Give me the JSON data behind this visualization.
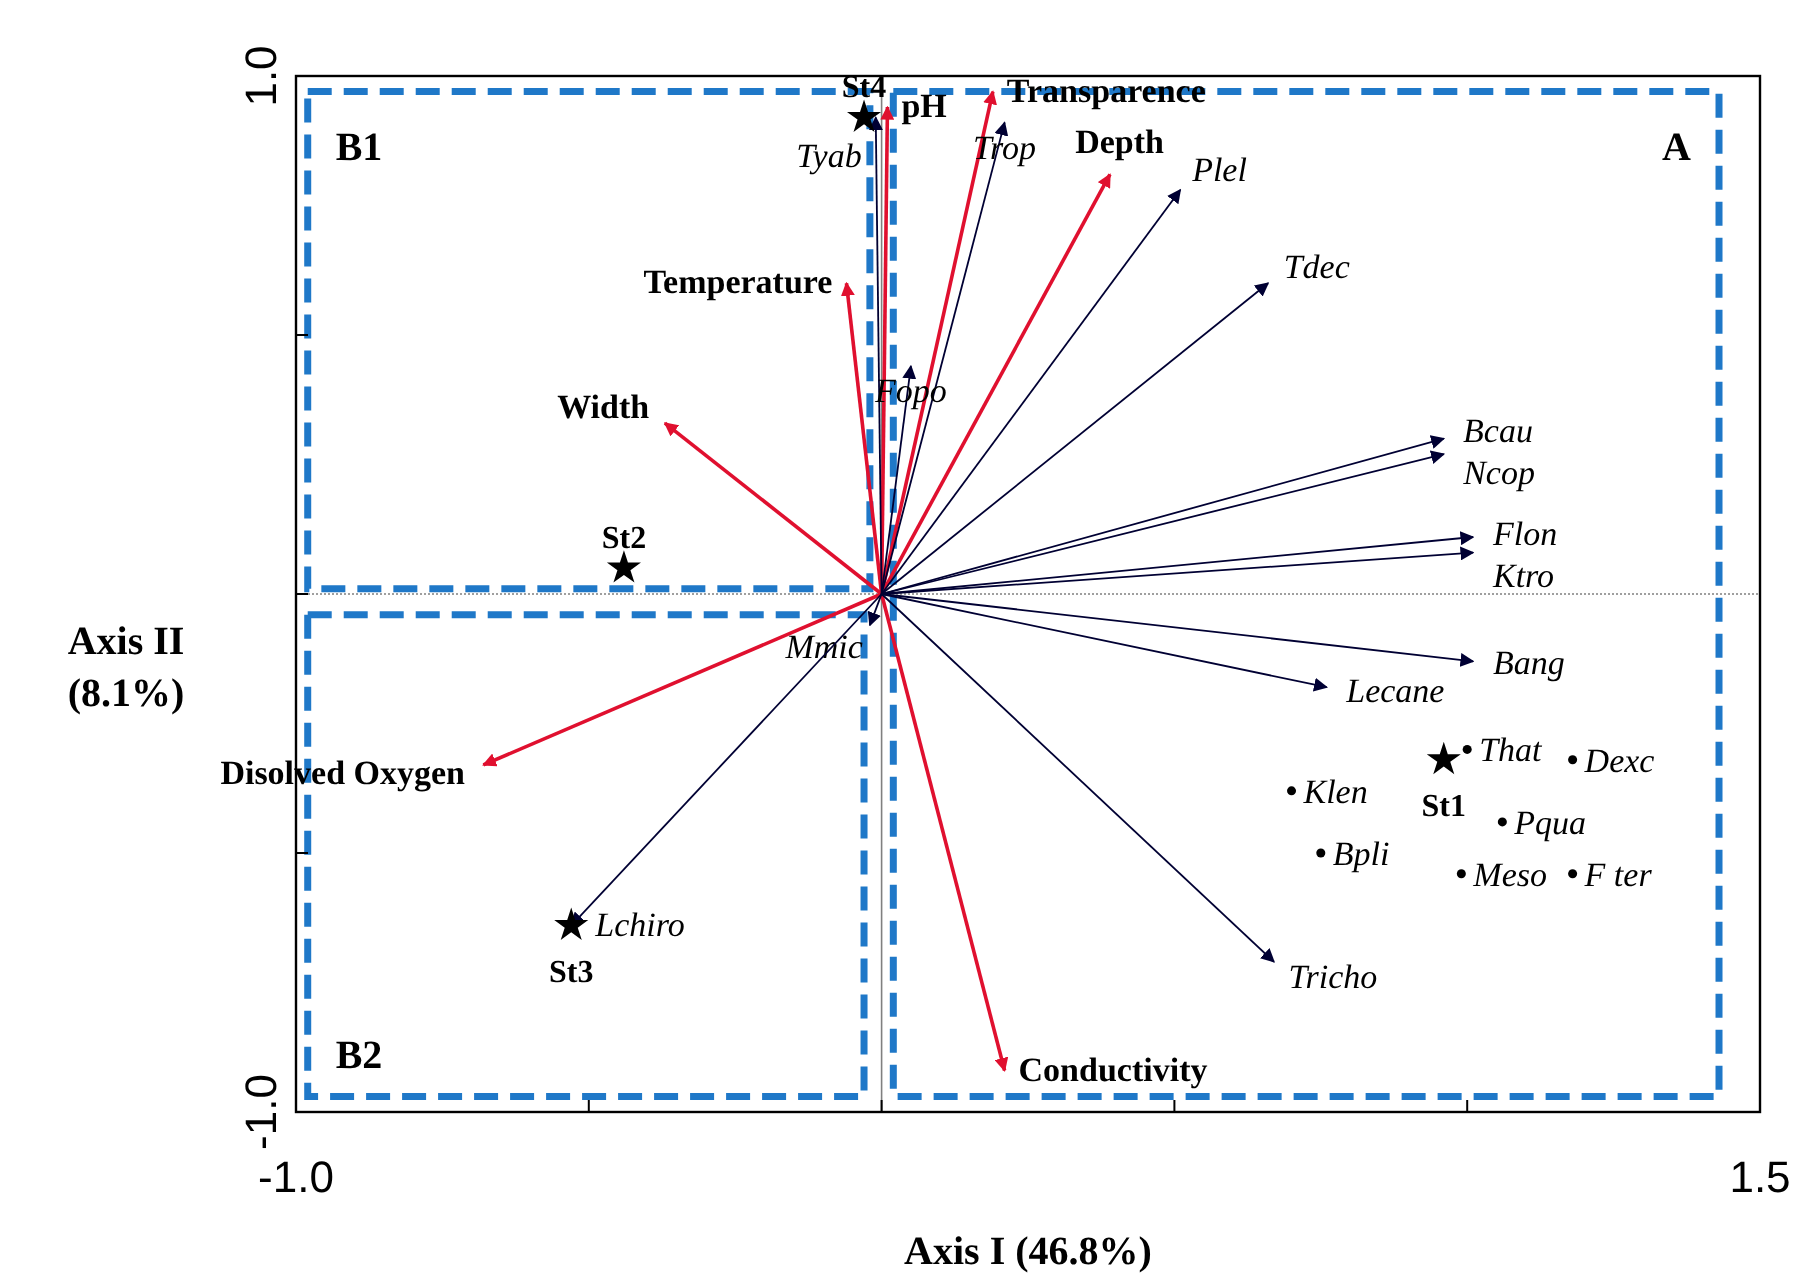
{
  "chart_data": {
    "type": "scatter",
    "xlabel": "Axis I (46.8%)",
    "ylabel": "Axis II (8.1%)",
    "xlim": [
      -1.0,
      1.5
    ],
    "ylim": [
      -1.0,
      1.0
    ],
    "xticks": [
      {
        "value": -1.0,
        "label": "-1.0"
      },
      {
        "value": -0.5,
        "label": null
      },
      {
        "value": 0,
        "label": null
      },
      {
        "value": 0.5,
        "label": null
      },
      {
        "value": 1.0,
        "label": null
      },
      1.5
    ],
    "yticks": [
      {
        "value": -1.0,
        "label": "-1.0"
      },
      {
        "value": -0.5,
        "label": null
      },
      {
        "value": 0,
        "label": null
      },
      {
        "value": 0.5,
        "label": null
      },
      {
        "value": 1.0,
        "label": "1.0"
      }
    ],
    "ref_lines": [
      {
        "axis": "x",
        "value": 0,
        "color": "#808080",
        "line_style": "solid"
      },
      {
        "axis": "y",
        "value": 0,
        "color": "#808080",
        "line_style": "dotted"
      }
    ],
    "series": [
      {
        "name": "pH",
        "type": "line",
        "color": "#e0102f",
        "x": [
          0,
          0.01
        ],
        "values": [
          0,
          0.94
        ]
      },
      {
        "name": "Transparence",
        "type": "line",
        "color": "#e0102f",
        "x": [
          0,
          0.19
        ],
        "values": [
          0,
          0.97
        ]
      },
      {
        "name": "Depth",
        "type": "line",
        "color": "#e0102f",
        "x": [
          0,
          0.39
        ],
        "values": [
          0,
          0.81
        ]
      },
      {
        "name": "Temperature",
        "type": "line",
        "color": "#e0102f",
        "x": [
          0,
          -0.06
        ],
        "values": [
          0,
          0.6
        ]
      },
      {
        "name": "Width",
        "type": "line",
        "color": "#e0102f",
        "x": [
          0,
          -0.37
        ],
        "values": [
          0,
          0.33
        ]
      },
      {
        "name": "Disolved Oxygen",
        "type": "line",
        "color": "#e0102f",
        "x": [
          0,
          -0.68
        ],
        "values": [
          0,
          -0.33
        ]
      },
      {
        "name": "Conductivity",
        "type": "line",
        "color": "#e0102f",
        "x": [
          0,
          0.21
        ],
        "values": [
          0,
          -0.92
        ]
      },
      {
        "name": "Tyab",
        "type": "line",
        "color": "#000033",
        "x": [
          0,
          -0.01
        ],
        "values": [
          0,
          0.92
        ]
      },
      {
        "name": "Trop",
        "type": "line",
        "color": "#000033",
        "x": [
          0,
          0.21
        ],
        "values": [
          0,
          0.91
        ]
      },
      {
        "name": "Plel",
        "type": "line",
        "color": "#000033",
        "x": [
          0,
          0.51
        ],
        "values": [
          0,
          0.78
        ]
      },
      {
        "name": "Tdec",
        "type": "line",
        "color": "#000033",
        "x": [
          0,
          0.66
        ],
        "values": [
          0,
          0.6
        ]
      },
      {
        "name": "Fopo",
        "type": "line",
        "color": "#000033",
        "x": [
          0,
          0.05
        ],
        "values": [
          0,
          0.44
        ]
      },
      {
        "name": "Bcau",
        "type": "line",
        "color": "#000033",
        "x": [
          0,
          0.96
        ],
        "values": [
          0,
          0.3
        ]
      },
      {
        "name": "Ncop",
        "type": "line",
        "color": "#000033",
        "x": [
          0,
          0.96
        ],
        "values": [
          0,
          0.27
        ]
      },
      {
        "name": "Flon",
        "type": "line",
        "color": "#000033",
        "x": [
          0,
          1.01
        ],
        "values": [
          0,
          0.11
        ]
      },
      {
        "name": "Ktro",
        "type": "line",
        "color": "#000033",
        "x": [
          0,
          1.01
        ],
        "values": [
          0,
          0.08
        ]
      },
      {
        "name": "Bang",
        "type": "line",
        "color": "#000033",
        "x": [
          0,
          1.01
        ],
        "values": [
          0,
          -0.13
        ]
      },
      {
        "name": "Lecane",
        "type": "line",
        "color": "#000033",
        "x": [
          0,
          0.76
        ],
        "values": [
          0,
          -0.18
        ]
      },
      {
        "name": "Tricho",
        "type": "line",
        "color": "#000033",
        "x": [
          0,
          0.67
        ],
        "values": [
          0,
          -0.71
        ]
      },
      {
        "name": "Mmic",
        "type": "line",
        "color": "#000033",
        "x": [
          0,
          -0.02
        ],
        "values": [
          0,
          -0.06
        ]
      },
      {
        "name": "Lchiro",
        "type": "line",
        "color": "#000033",
        "x": [
          0,
          -0.53
        ],
        "values": [
          0,
          -0.64
        ]
      },
      {
        "name": "That",
        "marker": "circle",
        "color": "#000000",
        "x": [
          1.0
        ],
        "values": [
          -0.3
        ]
      },
      {
        "name": "Dexc",
        "marker": "circle",
        "color": "#000000",
        "x": [
          1.18
        ],
        "values": [
          -0.32
        ]
      },
      {
        "name": "Klen",
        "marker": "circle",
        "color": "#000000",
        "x": [
          0.7
        ],
        "values": [
          -0.38
        ]
      },
      {
        "name": "Pqua",
        "marker": "circle",
        "color": "#000000",
        "x": [
          1.06
        ],
        "values": [
          -0.44
        ]
      },
      {
        "name": "Bpli",
        "marker": "circle",
        "color": "#000000",
        "x": [
          0.75
        ],
        "values": [
          -0.5
        ]
      },
      {
        "name": "Meso",
        "marker": "circle",
        "color": "#000000",
        "x": [
          0.99
        ],
        "values": [
          -0.54
        ]
      },
      {
        "name": "F ter",
        "marker": "circle",
        "color": "#000000",
        "x": [
          1.18
        ],
        "values": [
          -0.54
        ]
      },
      {
        "name": "St1",
        "marker": "star",
        "color": "#000000",
        "x": [
          0.96
        ],
        "values": [
          -0.32
        ]
      },
      {
        "name": "St2",
        "marker": "star",
        "color": "#000000",
        "x": [
          -0.44
        ],
        "values": [
          0.05
        ]
      },
      {
        "name": "St3",
        "marker": "star",
        "color": "#000000",
        "x": [
          -0.53
        ],
        "values": [
          -0.64
        ]
      },
      {
        "name": "St4",
        "marker": "star",
        "color": "#000000",
        "x": [
          -0.03
        ],
        "values": [
          0.92
        ]
      }
    ],
    "annotations": [
      "A",
      "B1",
      "B2"
    ]
  }
}
